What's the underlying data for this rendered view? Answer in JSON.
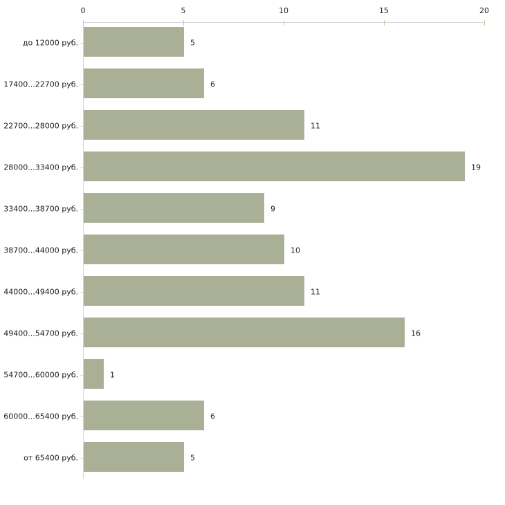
{
  "chart_data": {
    "type": "bar",
    "orientation": "horizontal",
    "title": "",
    "xlabel": "",
    "ylabel": "",
    "categories": [
      "до 12000 руб.",
      "17400...22700 руб.",
      "22700...28000 руб.",
      "28000...33400 руб.",
      "33400...38700 руб.",
      "38700...44000 руб.",
      "44000...49400 руб.",
      "49400...54700 руб.",
      "54700...60000 руб.",
      "60000...65400 руб.",
      "от 65400 руб."
    ],
    "values": [
      5,
      6,
      11,
      19,
      9,
      10,
      11,
      16,
      1,
      6,
      5
    ],
    "xlim": [
      0,
      20
    ],
    "x_ticks": [
      "0",
      "5",
      "10",
      "15",
      "20"
    ],
    "x_axis_position": "top",
    "grid": false,
    "legend": "none",
    "bar_color": "#a9b096",
    "axis_line_color": "#d6d6d6",
    "x_tick_mark_color": "#c9c99b",
    "text_color": "#1c1c1c",
    "background_color": "#ffffff"
  }
}
